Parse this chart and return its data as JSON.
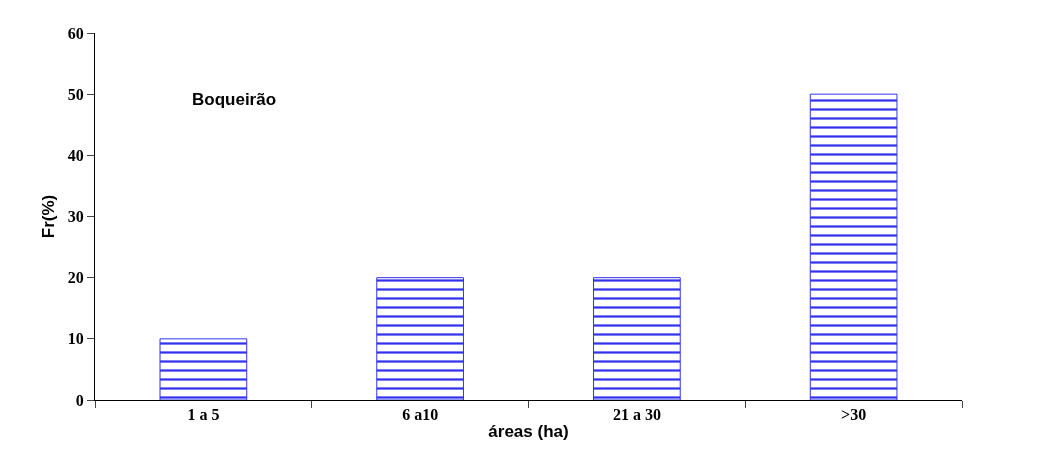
{
  "chart_data": {
    "type": "bar",
    "xlabel": "áreas (ha)",
    "ylabel": "Fr(%)",
    "annotations": [
      "Boqueirão"
    ],
    "categories": [
      "1 a 5",
      "6 a10",
      "21 a 30",
      ">30"
    ],
    "values": [
      10,
      20,
      20,
      50
    ],
    "color": "#3333ee",
    "ylim": [
      0,
      60
    ],
    "yticks": [
      0,
      10,
      20,
      30,
      40,
      50,
      60
    ],
    "grid": false
  }
}
